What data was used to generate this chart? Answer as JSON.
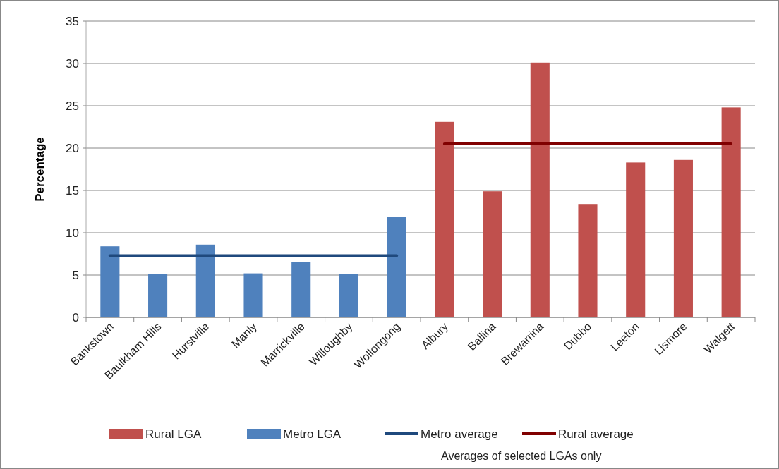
{
  "chart_data": {
    "type": "bar",
    "ylabel": "Percentage",
    "categories": [
      "Bankstown",
      "Baulkham Hills",
      "Hurstville",
      "Manly",
      "Marrickville",
      "Willoughby",
      "Wollongong",
      "Albury",
      "Ballina",
      "Brewarrina",
      "Dubbo",
      "Leeton",
      "Lismore",
      "Walgett"
    ],
    "series": [
      {
        "name": "Rural LGA",
        "color": "#c0504d",
        "values": [
          null,
          null,
          null,
          null,
          null,
          null,
          null,
          23.1,
          14.9,
          30.1,
          13.4,
          18.3,
          18.6,
          24.8
        ]
      },
      {
        "name": "Metro LGA",
        "color": "#4f81bd",
        "values": [
          8.4,
          5.1,
          8.6,
          5.2,
          6.5,
          5.1,
          11.9,
          null,
          null,
          null,
          null,
          null,
          null,
          null
        ]
      },
      {
        "name": "Metro average",
        "type": "line",
        "color": "#1f497d",
        "values": [
          7.3,
          7.3,
          7.3,
          7.3,
          7.3,
          7.3,
          7.3,
          null,
          null,
          null,
          null,
          null,
          null,
          null
        ]
      },
      {
        "name": "Rural average",
        "type": "line",
        "color": "#800000",
        "values": [
          null,
          null,
          null,
          null,
          null,
          null,
          null,
          20.5,
          20.5,
          20.5,
          20.5,
          20.5,
          20.5,
          20.5
        ]
      }
    ],
    "ylim": [
      0,
      35
    ],
    "yticks": [
      0,
      5,
      10,
      15,
      20,
      25,
      30,
      35
    ],
    "grid": "y",
    "legend": "bottom",
    "marker": "none",
    "annotations": [
      "Averages of selected LGAs only"
    ]
  }
}
